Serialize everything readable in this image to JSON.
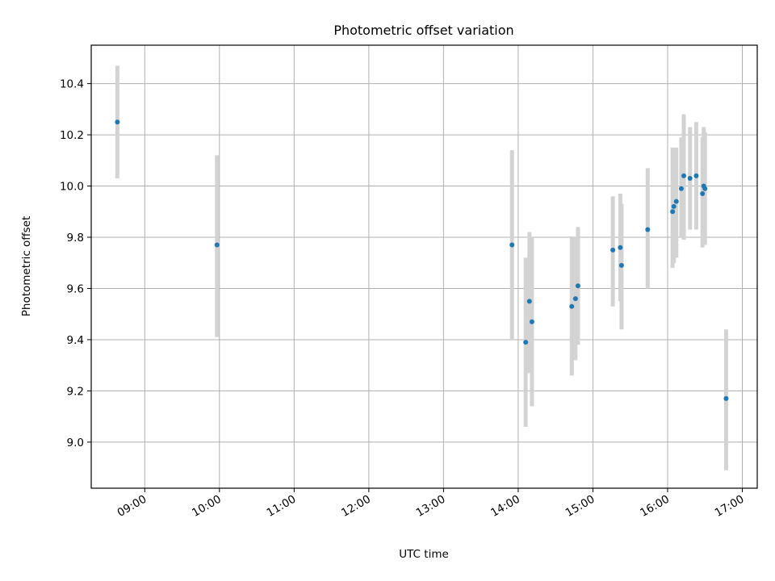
{
  "chart_data": {
    "type": "scatter",
    "title": "Photometric offset variation",
    "xlabel": "UTC time",
    "ylabel": "Photometric offset",
    "x_ticks": [
      "09:00",
      "10:00",
      "11:00",
      "12:00",
      "13:00",
      "14:00",
      "15:00",
      "16:00",
      "17:00"
    ],
    "y_ticks": [
      "9.0",
      "9.2",
      "9.4",
      "9.6",
      "9.8",
      "10.0",
      "10.2",
      "10.4"
    ],
    "xlim": [
      "08:17",
      "17:12"
    ],
    "ylim": [
      8.82,
      10.55
    ],
    "grid": true,
    "colors": {
      "marker": "#1f77b4",
      "errorbar": "#d3d3d3"
    },
    "points": [
      {
        "x": "08:38",
        "y": 10.25,
        "yerr_low": 10.03,
        "yerr_high": 10.47
      },
      {
        "x": "09:58",
        "y": 9.77,
        "yerr_low": 9.41,
        "yerr_high": 10.12
      },
      {
        "x": "13:55",
        "y": 9.77,
        "yerr_low": 9.4,
        "yerr_high": 10.14
      },
      {
        "x": "14:06",
        "y": 9.39,
        "yerr_low": 9.06,
        "yerr_high": 9.72
      },
      {
        "x": "14:09",
        "y": 9.55,
        "yerr_low": 9.27,
        "yerr_high": 9.82
      },
      {
        "x": "14:11",
        "y": 9.47,
        "yerr_low": 9.14,
        "yerr_high": 9.8
      },
      {
        "x": "14:43",
        "y": 9.53,
        "yerr_low": 9.26,
        "yerr_high": 9.8
      },
      {
        "x": "14:46",
        "y": 9.56,
        "yerr_low": 9.32,
        "yerr_high": 9.8
      },
      {
        "x": "14:48",
        "y": 9.61,
        "yerr_low": 9.38,
        "yerr_high": 9.84
      },
      {
        "x": "15:16",
        "y": 9.75,
        "yerr_low": 9.53,
        "yerr_high": 9.96
      },
      {
        "x": "15:22",
        "y": 9.76,
        "yerr_low": 9.55,
        "yerr_high": 9.97
      },
      {
        "x": "15:23",
        "y": 9.69,
        "yerr_low": 9.44,
        "yerr_high": 9.93
      },
      {
        "x": "15:44",
        "y": 9.83,
        "yerr_low": 9.6,
        "yerr_high": 10.07
      },
      {
        "x": "16:04",
        "y": 9.9,
        "yerr_low": 9.68,
        "yerr_high": 10.15
      },
      {
        "x": "16:05",
        "y": 9.92,
        "yerr_low": 9.7,
        "yerr_high": 10.15
      },
      {
        "x": "16:07",
        "y": 9.94,
        "yerr_low": 9.72,
        "yerr_high": 10.15
      },
      {
        "x": "16:11",
        "y": 9.99,
        "yerr_low": 9.8,
        "yerr_high": 10.19
      },
      {
        "x": "16:13",
        "y": 10.04,
        "yerr_low": 9.79,
        "yerr_high": 10.28
      },
      {
        "x": "16:18",
        "y": 10.03,
        "yerr_low": 9.83,
        "yerr_high": 10.23
      },
      {
        "x": "16:23",
        "y": 10.04,
        "yerr_low": 9.83,
        "yerr_high": 10.25
      },
      {
        "x": "16:28",
        "y": 9.97,
        "yerr_low": 9.76,
        "yerr_high": 10.19
      },
      {
        "x": "16:29",
        "y": 10.0,
        "yerr_low": 9.77,
        "yerr_high": 10.23
      },
      {
        "x": "16:30",
        "y": 9.99,
        "yerr_low": 9.77,
        "yerr_high": 10.21
      },
      {
        "x": "16:47",
        "y": 9.17,
        "yerr_low": 8.89,
        "yerr_high": 9.44
      }
    ]
  }
}
